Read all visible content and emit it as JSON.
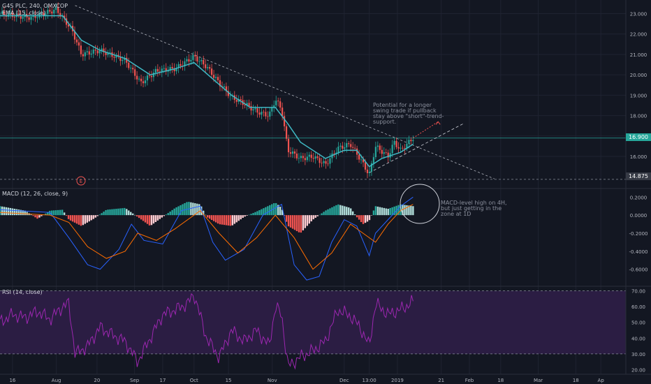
{
  "header": {
    "symbol_line": "G4S PLC, 240, OMXCOP",
    "ema_line": "EMA (15, close)",
    "macd_line": "MACD (12, 26, close, 9)",
    "rsi_line": "RSI (14, close)"
  },
  "price_tags": {
    "last": "16.900",
    "support": "14.875"
  },
  "event_marker": "E",
  "annotations": {
    "trade_note": [
      "Potential for a longer",
      "swing trade if pullback",
      "stay above \"short\"-trend-",
      "support."
    ],
    "macd_note": [
      "MACD-level high on 4H,",
      "but just getting in the",
      "zone at 1D"
    ]
  },
  "colors": {
    "background": "#131722",
    "grid": "#1f2331",
    "up": "#26a69a",
    "down": "#ef5350",
    "ema": "#3fb9c4",
    "macd": "#2962ff",
    "signal": "#ff6d00",
    "rsi": "#9c27b0",
    "rsi_band": "#2b1d43",
    "last_price": "#26a69a",
    "support": "#363a45"
  },
  "chart_data": [
    {
      "type": "candlestick",
      "title": "G4S PLC, 240, OMXCOP",
      "x_ticks": [
        "16",
        "Aug",
        "20",
        "Sep",
        "17",
        "Oct",
        "15",
        "Nov",
        "Dec",
        "13:00",
        "2019",
        "21",
        "Feb",
        "18",
        "Mar",
        "18",
        "Ap"
      ],
      "y_ticks": [
        16.0,
        17.0,
        18.0,
        19.0,
        20.0,
        21.0,
        22.0,
        23.0
      ],
      "ylim": [
        14.7,
        23.6
      ],
      "last_price": 16.9,
      "support_level": 14.875,
      "close_path": [
        [
          0,
          23.0
        ],
        [
          0.05,
          22.8
        ],
        [
          0.09,
          23.2
        ],
        [
          0.115,
          22.2
        ],
        [
          0.13,
          21.0
        ],
        [
          0.16,
          21.2
        ],
        [
          0.2,
          20.7
        ],
        [
          0.225,
          19.6
        ],
        [
          0.25,
          20.2
        ],
        [
          0.28,
          20.3
        ],
        [
          0.31,
          20.9
        ],
        [
          0.33,
          20.4
        ],
        [
          0.35,
          19.6
        ],
        [
          0.37,
          18.9
        ],
        [
          0.39,
          18.6
        ],
        [
          0.41,
          18.2
        ],
        [
          0.43,
          18.0
        ],
        [
          0.44,
          18.8
        ],
        [
          0.45,
          18.3
        ],
        [
          0.46,
          16.3
        ],
        [
          0.48,
          15.9
        ],
        [
          0.5,
          16.0
        ],
        [
          0.52,
          15.6
        ],
        [
          0.54,
          16.4
        ],
        [
          0.56,
          16.6
        ],
        [
          0.575,
          15.9
        ],
        [
          0.59,
          15.1
        ],
        [
          0.6,
          16.5
        ],
        [
          0.62,
          16.0
        ],
        [
          0.63,
          16.7
        ],
        [
          0.64,
          16.3
        ],
        [
          0.66,
          16.9
        ]
      ],
      "ema_path": [
        [
          0,
          22.9
        ],
        [
          0.1,
          22.9
        ],
        [
          0.13,
          21.7
        ],
        [
          0.16,
          21.2
        ],
        [
          0.2,
          20.8
        ],
        [
          0.24,
          20.0
        ],
        [
          0.28,
          20.3
        ],
        [
          0.31,
          20.6
        ],
        [
          0.34,
          19.8
        ],
        [
          0.37,
          19.0
        ],
        [
          0.4,
          18.4
        ],
        [
          0.44,
          18.4
        ],
        [
          0.46,
          17.6
        ],
        [
          0.48,
          16.7
        ],
        [
          0.52,
          15.9
        ],
        [
          0.55,
          16.3
        ],
        [
          0.57,
          16.3
        ],
        [
          0.59,
          15.5
        ],
        [
          0.61,
          15.9
        ],
        [
          0.64,
          16.2
        ],
        [
          0.66,
          16.6
        ]
      ],
      "trend_lines": {
        "downtrend": [
          [
            0.12,
            23.4
          ],
          [
            0.79,
            14.9
          ]
        ],
        "short_support": [
          [
            0.59,
            15.2
          ],
          [
            0.74,
            17.6
          ]
        ]
      },
      "projection_arrow": [
        [
          0.66,
          16.9
        ],
        [
          0.7,
          17.7
        ]
      ]
    },
    {
      "type": "bar",
      "title": "MACD (12, 26, close, 9)",
      "y_ticks": [
        0.2,
        0.0,
        -0.2,
        -0.4,
        -0.6
      ],
      "ylim": [
        -0.75,
        0.28
      ],
      "histogram_path": [
        [
          0,
          0.1
        ],
        [
          0.04,
          0.05
        ],
        [
          0.06,
          -0.04
        ],
        [
          0.08,
          0.05
        ],
        [
          0.1,
          0.06
        ],
        [
          0.11,
          -0.05
        ],
        [
          0.13,
          -0.12
        ],
        [
          0.15,
          -0.04
        ],
        [
          0.17,
          0.06
        ],
        [
          0.2,
          0.08
        ],
        [
          0.22,
          -0.02
        ],
        [
          0.24,
          -0.12
        ],
        [
          0.26,
          -0.02
        ],
        [
          0.28,
          0.08
        ],
        [
          0.3,
          0.15
        ],
        [
          0.32,
          0.12
        ],
        [
          0.33,
          -0.02
        ],
        [
          0.35,
          -0.1
        ],
        [
          0.37,
          -0.12
        ],
        [
          0.39,
          -0.02
        ],
        [
          0.41,
          0.04
        ],
        [
          0.44,
          0.14
        ],
        [
          0.45,
          0.08
        ],
        [
          0.46,
          -0.12
        ],
        [
          0.48,
          -0.2
        ],
        [
          0.5,
          -0.05
        ],
        [
          0.52,
          0.05
        ],
        [
          0.54,
          0.12
        ],
        [
          0.56,
          0.08
        ],
        [
          0.57,
          -0.02
        ],
        [
          0.58,
          -0.1
        ],
        [
          0.59,
          -0.06
        ],
        [
          0.6,
          0.1
        ],
        [
          0.62,
          0.07
        ],
        [
          0.64,
          0.12
        ],
        [
          0.66,
          0.1
        ]
      ],
      "macd_path": [
        [
          0,
          0.06
        ],
        [
          0.08,
          0.03
        ],
        [
          0.11,
          -0.25
        ],
        [
          0.14,
          -0.55
        ],
        [
          0.16,
          -0.6
        ],
        [
          0.19,
          -0.38
        ],
        [
          0.21,
          -0.1
        ],
        [
          0.23,
          -0.28
        ],
        [
          0.26,
          -0.32
        ],
        [
          0.29,
          0.05
        ],
        [
          0.32,
          0.1
        ],
        [
          0.34,
          -0.3
        ],
        [
          0.36,
          -0.5
        ],
        [
          0.39,
          -0.38
        ],
        [
          0.42,
          0.0
        ],
        [
          0.45,
          0.12
        ],
        [
          0.47,
          -0.55
        ],
        [
          0.49,
          -0.72
        ],
        [
          0.51,
          -0.68
        ],
        [
          0.53,
          -0.3
        ],
        [
          0.55,
          -0.05
        ],
        [
          0.57,
          -0.12
        ],
        [
          0.59,
          -0.45
        ],
        [
          0.6,
          -0.2
        ],
        [
          0.62,
          -0.05
        ],
        [
          0.64,
          0.1
        ],
        [
          0.66,
          0.2
        ]
      ],
      "signal_path": [
        [
          0,
          0.03
        ],
        [
          0.08,
          0.0
        ],
        [
          0.11,
          -0.08
        ],
        [
          0.14,
          -0.35
        ],
        [
          0.17,
          -0.48
        ],
        [
          0.2,
          -0.4
        ],
        [
          0.22,
          -0.2
        ],
        [
          0.25,
          -0.28
        ],
        [
          0.28,
          -0.15
        ],
        [
          0.32,
          0.05
        ],
        [
          0.35,
          -0.2
        ],
        [
          0.38,
          -0.42
        ],
        [
          0.41,
          -0.25
        ],
        [
          0.44,
          0.0
        ],
        [
          0.47,
          -0.25
        ],
        [
          0.5,
          -0.6
        ],
        [
          0.53,
          -0.42
        ],
        [
          0.56,
          -0.1
        ],
        [
          0.58,
          -0.2
        ],
        [
          0.6,
          -0.3
        ],
        [
          0.62,
          -0.1
        ],
        [
          0.64,
          0.05
        ],
        [
          0.66,
          0.12
        ]
      ]
    },
    {
      "type": "line",
      "title": "RSI (14, close)",
      "y_ticks": [
        70.0,
        60.0,
        50.0,
        40.0,
        30.0,
        20.0
      ],
      "ylim": [
        18,
        72
      ],
      "band": [
        30,
        70
      ],
      "rsi_path": [
        [
          0,
          50
        ],
        [
          0.02,
          55
        ],
        [
          0.04,
          53
        ],
        [
          0.06,
          57
        ],
        [
          0.08,
          52
        ],
        [
          0.1,
          60
        ],
        [
          0.11,
          62
        ],
        [
          0.12,
          30
        ],
        [
          0.14,
          35
        ],
        [
          0.16,
          47
        ],
        [
          0.18,
          42
        ],
        [
          0.2,
          38
        ],
        [
          0.22,
          25
        ],
        [
          0.24,
          40
        ],
        [
          0.26,
          55
        ],
        [
          0.28,
          58
        ],
        [
          0.3,
          62
        ],
        [
          0.31,
          68
        ],
        [
          0.33,
          40
        ],
        [
          0.35,
          28
        ],
        [
          0.37,
          45
        ],
        [
          0.39,
          38
        ],
        [
          0.41,
          45
        ],
        [
          0.43,
          35
        ],
        [
          0.44,
          60
        ],
        [
          0.45,
          55
        ],
        [
          0.46,
          22
        ],
        [
          0.48,
          28
        ],
        [
          0.5,
          32
        ],
        [
          0.52,
          38
        ],
        [
          0.54,
          58
        ],
        [
          0.56,
          54
        ],
        [
          0.575,
          47
        ],
        [
          0.59,
          35
        ],
        [
          0.6,
          62
        ],
        [
          0.62,
          55
        ],
        [
          0.64,
          58
        ],
        [
          0.66,
          63
        ]
      ]
    }
  ]
}
